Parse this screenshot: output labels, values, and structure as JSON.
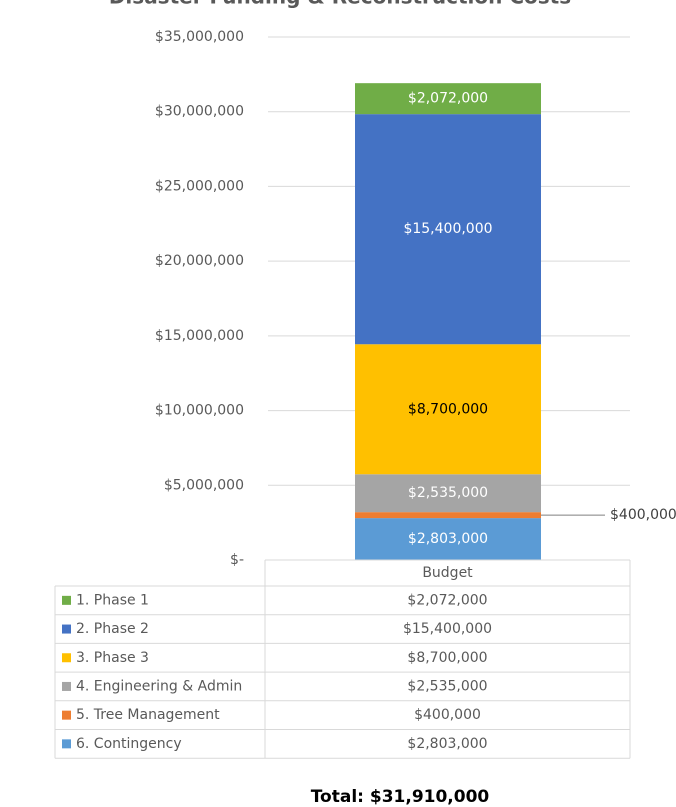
{
  "chart_data": {
    "type": "stacked_bar",
    "title": "Disaster Funding & Reconstruction Costs",
    "categories": [
      "Budget"
    ],
    "series": [
      {
        "name": "1. Phase 1",
        "color": "#70ad47",
        "label_color": "#ffffff",
        "values": [
          2072000
        ],
        "value_labels": [
          "$2,072,000"
        ]
      },
      {
        "name": "2. Phase 2",
        "color": "#4472c4",
        "label_color": "#ffffff",
        "values": [
          15400000
        ],
        "value_labels": [
          "$15,400,000"
        ]
      },
      {
        "name": "3. Phase 3",
        "color": "#ffc000",
        "label_color": "#000000",
        "values": [
          8700000
        ],
        "value_labels": [
          "$8,700,000"
        ]
      },
      {
        "name": "4. Engineering & Admin",
        "color": "#a5a5a5",
        "label_color": "#ffffff",
        "values": [
          2535000
        ],
        "value_labels": [
          "$2,535,000"
        ]
      },
      {
        "name": "5. Tree Management",
        "color": "#ed7d31",
        "label_color": "#404040",
        "values": [
          400000
        ],
        "value_labels": [
          "$400,000"
        ]
      },
      {
        "name": "6. Contingency",
        "color": "#5b9bd5",
        "label_color": "#ffffff",
        "values": [
          2803000
        ],
        "value_labels": [
          "$2,803,000"
        ]
      }
    ],
    "ylim": [
      0,
      35000000
    ],
    "yticks": [
      {
        "value": 0,
        "label": "$-"
      },
      {
        "value": 5000000,
        "label": "$5,000,000"
      },
      {
        "value": 10000000,
        "label": "$10,000,000"
      },
      {
        "value": 15000000,
        "label": "$15,000,000"
      },
      {
        "value": 20000000,
        "label": "$20,000,000"
      },
      {
        "value": 25000000,
        "label": "$25,000,000"
      },
      {
        "value": 30000000,
        "label": "$30,000,000"
      },
      {
        "value": 35000000,
        "label": "$35,000,000"
      }
    ],
    "grid": true,
    "data_table": true,
    "footer": "Total: $31,910,000"
  }
}
